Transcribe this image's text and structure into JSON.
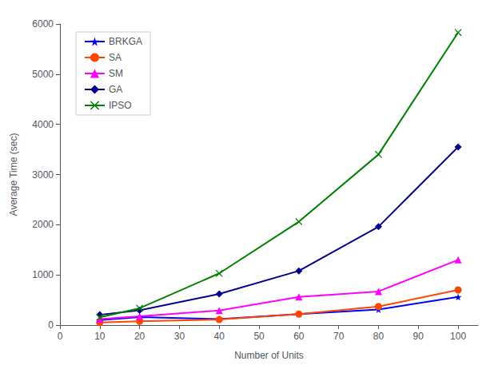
{
  "chart_data": {
    "type": "line",
    "x": [
      10,
      20,
      40,
      60,
      80,
      100
    ],
    "series": [
      {
        "name": "BRKGA",
        "color": "#0000ff",
        "marker": "star",
        "values": [
          100,
          160,
          120,
          220,
          310,
          560
        ]
      },
      {
        "name": "SA",
        "color": "#ff4500",
        "marker": "circle",
        "values": [
          50,
          75,
          110,
          220,
          370,
          700
        ]
      },
      {
        "name": "SM",
        "color": "#ff00ff",
        "marker": "triangle",
        "values": [
          120,
          175,
          290,
          560,
          670,
          1300
        ]
      },
      {
        "name": "GA",
        "color": "#00008b",
        "marker": "diamond",
        "values": [
          205,
          295,
          620,
          1080,
          1960,
          3550
        ]
      },
      {
        "name": "IPSO",
        "color": "#008000",
        "marker": "x",
        "values": [
          155,
          335,
          1030,
          2060,
          3400,
          5830
        ]
      }
    ],
    "xlabel": "Number of Units",
    "ylabel": "Average Time (sec)",
    "xlim": [
      0,
      105
    ],
    "ylim": [
      0,
      6000
    ],
    "xticks": [
      0,
      10,
      20,
      30,
      40,
      50,
      60,
      70,
      80,
      90,
      100
    ],
    "yticks": [
      0,
      1000,
      2000,
      3000,
      4000,
      5000,
      6000
    ],
    "grid": false,
    "legend": "upper left"
  }
}
